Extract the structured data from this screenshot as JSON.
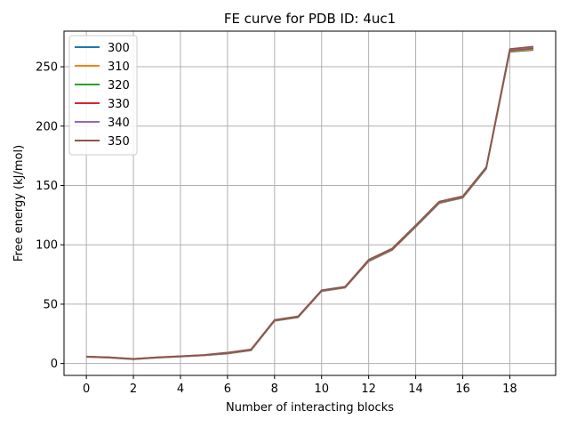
{
  "chart_data": {
    "type": "line",
    "title": "FE curve for PDB ID: 4uc1",
    "xlabel": "Number of interacting blocks",
    "ylabel": "Free energy (kJ/mol)",
    "xlim": [
      -0.95,
      19.95
    ],
    "ylim": [
      -10,
      280
    ],
    "xticks": [
      "0",
      "2",
      "4",
      "6",
      "8",
      "10",
      "12",
      "14",
      "16",
      "18"
    ],
    "yticks": [
      "0",
      "50",
      "100",
      "150",
      "200",
      "250"
    ],
    "grid": true,
    "legend_position": "top-left",
    "x": [
      0,
      1,
      2,
      3,
      4,
      5,
      6,
      7,
      8,
      9,
      10,
      11,
      12,
      13,
      14,
      15,
      16,
      17,
      18,
      19
    ],
    "series": [
      {
        "name": "300",
        "color": "#1f77b4",
        "values": [
          5.5,
          4.8,
          3.5,
          4.8,
          5.8,
          6.8,
          8.3,
          11.0,
          35.8,
          38.8,
          60.8,
          63.8,
          86.0,
          95.5,
          115.0,
          135.0,
          139.5,
          164.0,
          262.5,
          264.0
        ]
      },
      {
        "name": "310",
        "color": "#ff7f0e",
        "values": [
          5.6,
          4.9,
          3.6,
          4.9,
          5.9,
          6.9,
          8.5,
          11.2,
          36.0,
          39.0,
          61.0,
          64.0,
          86.3,
          95.8,
          115.3,
          135.3,
          139.8,
          164.3,
          263.0,
          264.6
        ]
      },
      {
        "name": "320",
        "color": "#2ca02c",
        "values": [
          5.7,
          5.0,
          3.7,
          5.0,
          6.0,
          7.0,
          8.7,
          11.4,
          36.2,
          39.2,
          61.2,
          64.2,
          86.6,
          96.1,
          115.6,
          135.6,
          140.1,
          164.6,
          263.5,
          265.2
        ]
      },
      {
        "name": "330",
        "color": "#d62728",
        "values": [
          5.8,
          5.1,
          3.8,
          5.1,
          6.1,
          7.1,
          8.9,
          11.6,
          36.4,
          39.4,
          61.4,
          64.4,
          86.9,
          96.4,
          115.9,
          135.9,
          140.4,
          164.9,
          264.0,
          265.8
        ]
      },
      {
        "name": "340",
        "color": "#9467bd",
        "values": [
          5.9,
          5.2,
          3.9,
          5.2,
          6.2,
          7.2,
          9.1,
          11.8,
          36.6,
          39.6,
          61.6,
          64.6,
          87.2,
          96.7,
          116.2,
          136.2,
          140.7,
          165.2,
          264.5,
          266.4
        ]
      },
      {
        "name": "350",
        "color": "#8c564b",
        "values": [
          6.0,
          5.3,
          4.0,
          5.3,
          6.3,
          7.3,
          9.3,
          12.0,
          36.8,
          39.8,
          61.8,
          64.8,
          87.5,
          97.0,
          116.5,
          136.5,
          141.0,
          165.5,
          265.0,
          267.0
        ]
      }
    ]
  }
}
